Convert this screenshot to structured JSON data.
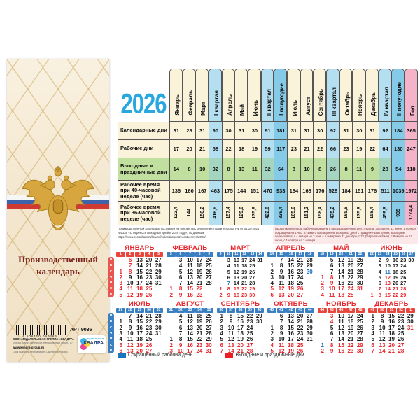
{
  "year": "2026",
  "left_panel": {
    "title_line1": "Производственный",
    "title_line2": "календарь",
    "barcode_number": "4 606110 090366",
    "art_number": "АРТ 9036",
    "publisher_name": "ООО «ИЗДАТЕЛЬСКАЯ ГРУППА «КВАДРА»",
    "publisher_address": "195265, Санкт-Петербург, Непокорённых просп., 47",
    "website": "www.kvadra-group.ru",
    "note": "Срок годности неограничен. Сделано в России.",
    "logo_small": "ИЗДАТЕЛЬСКАЯ",
    "logo_text": "КВАДРА"
  },
  "summary_table": {
    "columns": [
      {
        "label": "Январь",
        "type": "month"
      },
      {
        "label": "Февраль",
        "type": "month"
      },
      {
        "label": "Март",
        "type": "month"
      },
      {
        "label": "I квартал",
        "type": "quarter"
      },
      {
        "label": "Апрель",
        "type": "month"
      },
      {
        "label": "Май",
        "type": "month"
      },
      {
        "label": "Июнь",
        "type": "month"
      },
      {
        "label": "II квартал",
        "type": "quarter"
      },
      {
        "label": "I полугодие",
        "type": "half"
      },
      {
        "label": "Июль",
        "type": "month"
      },
      {
        "label": "Август",
        "type": "month"
      },
      {
        "label": "Сентябрь",
        "type": "month"
      },
      {
        "label": "III квартал",
        "type": "quarter"
      },
      {
        "label": "Октябрь",
        "type": "month"
      },
      {
        "label": "Ноябрь",
        "type": "month"
      },
      {
        "label": "Декабрь",
        "type": "month"
      },
      {
        "label": "IV квартал",
        "type": "quarter"
      },
      {
        "label": "II полугодие",
        "type": "half"
      },
      {
        "label": "Год",
        "type": "year"
      }
    ],
    "rows": [
      {
        "label": "Календарные дни",
        "values": [
          "31",
          "28",
          "31",
          "90",
          "30",
          "31",
          "30",
          "91",
          "181",
          "31",
          "31",
          "30",
          "92",
          "31",
          "30",
          "31",
          "92",
          "184",
          "365"
        ]
      },
      {
        "label": "Рабочие дни",
        "values": [
          "17",
          "20",
          "21",
          "58",
          "22",
          "18",
          "19",
          "59",
          "117",
          "23",
          "21",
          "22",
          "66",
          "23",
          "19",
          "22",
          "64",
          "130",
          "247"
        ]
      },
      {
        "label": "Выходные и праздничные дни",
        "green": true,
        "values": [
          "14",
          "8",
          "10",
          "32",
          "8",
          "13",
          "11",
          "32",
          "64",
          "8",
          "10",
          "8",
          "26",
          "8",
          "11",
          "9",
          "28",
          "54",
          "118"
        ]
      },
      {
        "label": "Рабочее время при 40-часовой неделе (час)",
        "values": [
          "136",
          "160",
          "167",
          "463",
          "175",
          "144",
          "151",
          "470",
          "933",
          "184",
          "168",
          "176",
          "528",
          "184",
          "151",
          "176",
          "511",
          "1039",
          "1972"
        ]
      },
      {
        "label": "Рабочее время при 36-часовой неделе (час)",
        "vertical": true,
        "values": [
          "122,4",
          "144",
          "150,2",
          "416,6",
          "157,4",
          "129,6",
          "135,8",
          "422,8",
          "839,4",
          "165,6",
          "151,2",
          "158,4",
          "475,2",
          "165,6",
          "135,8",
          "158,4",
          "459,8",
          "935",
          "1774,4"
        ]
      }
    ]
  },
  "footnotes": {
    "left": "Производственный календарь составлен на основе Постановления Правительства РФ от 04.10.2024 №1335 «О переносе выходных дней в 2025 году», по данным: https://www.consultant.ru/law/ref/calendar/proizvodstvennye/2025/",
    "right": "Продолжительность рабочего времени в предпраздничные дни: 7 марта, 30 апреля, 11 июня, 1 ноября сокращена на 1 час. В связи с совпадением выходных дней с праздничными днями, выходные переносятся: с 4 января на 2 мая, с 5 января на 31 декабря, с 23 февраля на 8 мая, с 8 марта на 13 июня, с 1 ноября на 3 ноября."
  },
  "calendar": {
    "day_letters": [
      "п",
      "в",
      "с",
      "ч",
      "п",
      "с",
      "в"
    ],
    "months": [
      {
        "name": "ЯНВАРЬ",
        "strip": "red",
        "weeks": [
          "1",
          "2",
          "3",
          "4",
          "5"
        ],
        "rows": [
          [
            "",
            "6h",
            "13",
            "20",
            "27"
          ],
          [
            "",
            "7h",
            "14",
            "21",
            "28"
          ],
          [
            "1h",
            "8h",
            "15",
            "22",
            "29"
          ],
          [
            "2h",
            "9",
            "16",
            "23",
            "30"
          ],
          [
            "3h",
            "10",
            "17",
            "24",
            "31"
          ],
          [
            "4h",
            "11h",
            "18h",
            "25h",
            ""
          ],
          [
            "5h",
            "12h",
            "19h",
            "26h",
            ""
          ]
        ]
      },
      {
        "name": "ФЕВРАЛЬ",
        "strip": "blue",
        "weeks": [
          "5",
          "6",
          "7",
          "8",
          "9"
        ],
        "rows": [
          [
            "",
            "3",
            "10",
            "17",
            "24"
          ],
          [
            "",
            "4",
            "11",
            "18",
            "25"
          ],
          [
            "",
            "5",
            "12",
            "19",
            "26"
          ],
          [
            "",
            "6",
            "13",
            "20",
            "27"
          ],
          [
            "",
            "7",
            "14",
            "21",
            "28"
          ],
          [
            "1h",
            "8h",
            "15h",
            "22h",
            ""
          ],
          [
            "2h",
            "9h",
            "16h",
            "23h",
            ""
          ]
        ]
      },
      {
        "name": "МАРТ",
        "strip": "blue",
        "weeks": [
          "9",
          "10",
          "11",
          "12",
          "13",
          "14"
        ],
        "rows": [
          [
            "",
            "3",
            "10",
            "17",
            "24",
            "31"
          ],
          [
            "",
            "4",
            "11",
            "18",
            "25",
            ""
          ],
          [
            "",
            "5",
            "12",
            "19",
            "26",
            ""
          ],
          [
            "",
            "6",
            "13",
            "20",
            "27",
            ""
          ],
          [
            "",
            "7s",
            "14",
            "21",
            "28",
            ""
          ],
          [
            "1h",
            "8h",
            "15h",
            "22h",
            "29h",
            ""
          ],
          [
            "2h",
            "9h",
            "16h",
            "23h",
            "30h",
            ""
          ]
        ]
      },
      {
        "name": "АПРЕЛЬ",
        "strip": "blue",
        "weeks": [
          "14",
          "15",
          "16",
          "17",
          "18"
        ],
        "rows": [
          [
            "",
            "7",
            "14",
            "21",
            "28"
          ],
          [
            "1",
            "8",
            "15",
            "22",
            "29"
          ],
          [
            "2",
            "9",
            "16",
            "23",
            "30s"
          ],
          [
            "3",
            "10",
            "17",
            "24",
            ""
          ],
          [
            "4",
            "11",
            "18",
            "25",
            ""
          ],
          [
            "5h",
            "12h",
            "19h",
            "26h",
            ""
          ],
          [
            "6h",
            "13h",
            "20h",
            "27h",
            ""
          ]
        ]
      },
      {
        "name": "МАЙ",
        "strip": "blue",
        "weeks": [
          "18",
          "19",
          "20",
          "21",
          "22"
        ],
        "rows": [
          [
            "",
            "5",
            "12",
            "19",
            "26"
          ],
          [
            "",
            "6",
            "13",
            "20",
            "27"
          ],
          [
            "",
            "7",
            "14",
            "21",
            "28"
          ],
          [
            "1h",
            "8h",
            "15",
            "22",
            "29"
          ],
          [
            "2h",
            "9h",
            "16",
            "23",
            "30"
          ],
          [
            "3h",
            "10h",
            "17h",
            "24h",
            "31h"
          ],
          [
            "4h",
            "11h",
            "18h",
            "25h",
            ""
          ]
        ]
      },
      {
        "name": "ИЮНЬ",
        "strip": "blue",
        "weeks": [
          "22",
          "23",
          "24",
          "25",
          "26",
          "27"
        ],
        "rows": [
          [
            "",
            "2",
            "9",
            "16",
            "23",
            "30"
          ],
          [
            "",
            "3",
            "10",
            "17",
            "24",
            ""
          ],
          [
            "",
            "4",
            "11s",
            "18",
            "25",
            ""
          ],
          [
            "",
            "5",
            "12h",
            "19",
            "26",
            ""
          ],
          [
            "",
            "6",
            "13h",
            "20",
            "27",
            ""
          ],
          [
            "",
            "7h",
            "14h",
            "21h",
            "28h",
            ""
          ],
          [
            "1h",
            "8h",
            "15h",
            "22h",
            "29h",
            ""
          ]
        ]
      },
      {
        "name": "ИЮЛЬ",
        "strip": "blue",
        "weeks": [
          "27",
          "28",
          "29",
          "30",
          "31"
        ],
        "rows": [
          [
            "",
            "7",
            "14",
            "21",
            "28"
          ],
          [
            "1",
            "8",
            "15",
            "22",
            "29"
          ],
          [
            "2",
            "9",
            "16",
            "23",
            "30"
          ],
          [
            "3",
            "10",
            "17",
            "24",
            "31"
          ],
          [
            "4",
            "11",
            "18",
            "25",
            ""
          ],
          [
            "5h",
            "12h",
            "19h",
            "26h",
            ""
          ],
          [
            "6h",
            "13h",
            "20h",
            "27h",
            ""
          ]
        ]
      },
      {
        "name": "АВГУСТ",
        "strip": "blue",
        "weeks": [
          "31",
          "32",
          "33",
          "34",
          "35"
        ],
        "rows": [
          [
            "",
            "4",
            "11",
            "18",
            "25"
          ],
          [
            "",
            "5",
            "12",
            "19",
            "26"
          ],
          [
            "",
            "6",
            "13",
            "20",
            "27"
          ],
          [
            "",
            "7",
            "14",
            "21",
            "28"
          ],
          [
            "1",
            "8",
            "15",
            "22",
            "29"
          ],
          [
            "2h",
            "9h",
            "16h",
            "23h",
            "30h"
          ],
          [
            "3h",
            "10h",
            "17h",
            "24h",
            "31h"
          ]
        ]
      },
      {
        "name": "СЕНТЯБРЬ",
        "strip": "blue",
        "weeks": [
          "36",
          "37",
          "38",
          "39",
          "40"
        ],
        "rows": [
          [
            "1",
            "8",
            "15",
            "22",
            "29"
          ],
          [
            "2",
            "9",
            "16",
            "23",
            "30"
          ],
          [
            "3",
            "10",
            "17",
            "24",
            ""
          ],
          [
            "4",
            "11",
            "18",
            "25",
            ""
          ],
          [
            "5",
            "12",
            "19",
            "26",
            ""
          ],
          [
            "6h",
            "13h",
            "20h",
            "27h",
            ""
          ],
          [
            "7h",
            "14h",
            "21h",
            "28h",
            ""
          ]
        ]
      },
      {
        "name": "ОКТЯБРЬ",
        "strip": "blue",
        "weeks": [
          "40",
          "41",
          "42",
          "43",
          "44"
        ],
        "rows": [
          [
            "",
            "6",
            "13",
            "20",
            "27"
          ],
          [
            "",
            "7",
            "14",
            "21",
            "28"
          ],
          [
            "1",
            "8",
            "15",
            "22",
            "29"
          ],
          [
            "2",
            "9",
            "16",
            "23",
            "30"
          ],
          [
            "3",
            "10",
            "17",
            "24",
            "31"
          ],
          [
            "4h",
            "11h",
            "18h",
            "25h",
            ""
          ],
          [
            "5h",
            "12h",
            "19h",
            "26h",
            ""
          ]
        ]
      },
      {
        "name": "НОЯБРЬ",
        "strip": "red",
        "weeks": [
          "44",
          "45",
          "46",
          "47",
          "48"
        ],
        "rows": [
          [
            "",
            "3h",
            "10",
            "17",
            "24"
          ],
          [
            "",
            "4h",
            "11",
            "18",
            "25"
          ],
          [
            "",
            "5",
            "12",
            "19",
            "26"
          ],
          [
            "",
            "6",
            "13",
            "20",
            "27"
          ],
          [
            "",
            "7",
            "14",
            "21",
            "28"
          ],
          [
            "1s",
            "8h",
            "15h",
            "22h",
            "29h"
          ],
          [
            "2h",
            "9h",
            "16h",
            "23h",
            "30h"
          ]
        ]
      },
      {
        "name": "ДЕКАБРЬ",
        "strip": "red",
        "weeks": [
          "49",
          "50",
          "51",
          "52",
          "1"
        ],
        "rows": [
          [
            "1",
            "8",
            "15",
            "22",
            "29"
          ],
          [
            "2",
            "9",
            "16",
            "23",
            "30"
          ],
          [
            "3",
            "10",
            "17",
            "24",
            "31h"
          ],
          [
            "4",
            "11",
            "18",
            "25",
            ""
          ],
          [
            "5",
            "12",
            "19",
            "26",
            ""
          ],
          [
            "6h",
            "13h",
            "20h",
            "27h",
            ""
          ],
          [
            "7h",
            "14h",
            "21h",
            "28h",
            ""
          ]
        ]
      }
    ]
  },
  "legend": {
    "short_day": "Сокращенный рабочий день",
    "holidays": "Выходные и праздничные дни"
  },
  "colors": {
    "accent_blue": "#29a7df",
    "holiday_red": "#e8262b",
    "short_day_blue": "#1c6fc4",
    "quarter_bg": "#b3dff0",
    "half_year_bg": "#85cbe7",
    "year_bg": "#f4b3c9",
    "month_bg": "#faf3da",
    "weekend_row_bg": "#c1df9e",
    "legend_blue": "#1b75bb",
    "legend_red": "#ec1c24"
  }
}
